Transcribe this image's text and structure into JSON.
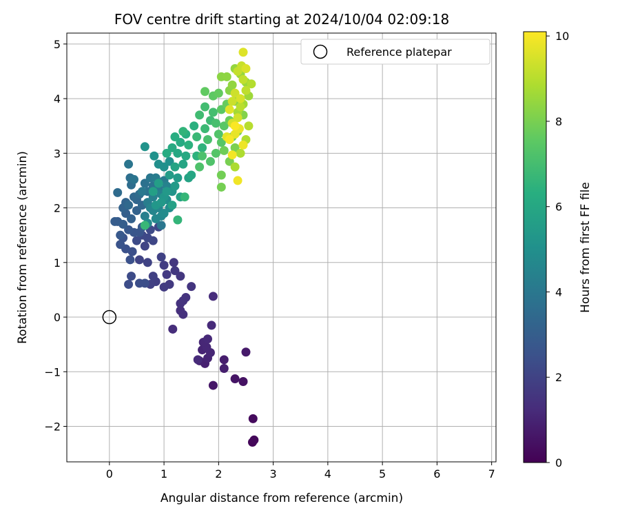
{
  "chart_data": {
    "type": "scatter",
    "title": "FOV centre drift starting at 2024/10/04 02:09:18",
    "xlabel": "Angular distance from reference (arcmin)",
    "ylabel": "Rotation from reference (arcmin)",
    "xlim": [
      -0.78,
      7.08
    ],
    "ylim": [
      -2.65,
      5.2
    ],
    "xticks": [
      0,
      1,
      2,
      3,
      4,
      5,
      6,
      7
    ],
    "yticks": [
      -2,
      -1,
      0,
      1,
      2,
      3,
      4,
      5
    ],
    "grid": true,
    "legend": {
      "placement": "top-right",
      "entries": [
        "Reference platepar"
      ]
    },
    "reference_point": {
      "x": 0,
      "y": 0,
      "label": "Reference platepar",
      "marker": "open-circle"
    },
    "colorbar": {
      "label": "Hours from first FF file",
      "range": [
        0,
        10.1
      ],
      "ticks": [
        0,
        2,
        4,
        6,
        8,
        10
      ],
      "colormap": "viridis"
    },
    "points": [
      [
        2.62,
        -2.29,
        0.15
      ],
      [
        2.65,
        -2.25,
        0.2
      ],
      [
        2.63,
        -1.86,
        0.3
      ],
      [
        2.45,
        -1.18,
        0.5
      ],
      [
        2.3,
        -1.13,
        0.55
      ],
      [
        1.9,
        -1.25,
        0.6
      ],
      [
        2.5,
        -0.64,
        0.7
      ],
      [
        2.1,
        -0.78,
        0.8
      ],
      [
        2.1,
        -0.94,
        0.85
      ],
      [
        1.75,
        -0.85,
        0.9
      ],
      [
        1.65,
        -0.8,
        0.95
      ],
      [
        1.7,
        -0.6,
        1.0
      ],
      [
        1.8,
        -0.75,
        1.0
      ],
      [
        1.85,
        -0.65,
        1.05
      ],
      [
        1.78,
        -0.55,
        1.1
      ],
      [
        1.72,
        -0.46,
        1.1
      ],
      [
        1.8,
        -0.4,
        1.15
      ],
      [
        1.87,
        -0.15,
        1.2
      ],
      [
        1.62,
        -0.78,
        1.2
      ],
      [
        1.9,
        0.38,
        1.25
      ],
      [
        1.16,
        -0.22,
        1.3
      ],
      [
        1.3,
        0.12,
        1.35
      ],
      [
        1.35,
        0.05,
        1.4
      ],
      [
        1.3,
        0.25,
        1.45
      ],
      [
        1.4,
        0.36,
        1.5
      ],
      [
        1.35,
        0.3,
        1.5
      ],
      [
        1.5,
        0.56,
        1.55
      ],
      [
        1.3,
        0.75,
        1.6
      ],
      [
        1.18,
        1.0,
        1.6
      ],
      [
        1.2,
        0.85,
        1.65
      ],
      [
        1.1,
        0.6,
        1.7
      ],
      [
        1.05,
        0.78,
        1.7
      ],
      [
        1.0,
        0.55,
        1.75
      ],
      [
        1.0,
        0.95,
        1.8
      ],
      [
        0.85,
        0.65,
        1.85
      ],
      [
        0.75,
        0.6,
        1.9
      ],
      [
        0.8,
        0.75,
        1.9
      ],
      [
        0.95,
        1.1,
        1.95
      ],
      [
        0.7,
        1.0,
        2.0
      ],
      [
        0.55,
        1.05,
        2.0
      ],
      [
        0.65,
        1.3,
        2.05
      ],
      [
        0.8,
        1.4,
        2.1
      ],
      [
        0.9,
        1.65,
        2.1
      ],
      [
        0.7,
        1.45,
        2.2
      ],
      [
        0.6,
        1.5,
        2.2
      ],
      [
        0.75,
        1.6,
        2.25
      ],
      [
        0.5,
        1.4,
        2.3
      ],
      [
        0.4,
        0.75,
        2.3
      ],
      [
        0.35,
        0.6,
        2.35
      ],
      [
        0.55,
        0.62,
        2.4
      ],
      [
        0.65,
        0.62,
        2.4
      ],
      [
        0.42,
        1.2,
        2.45
      ],
      [
        0.38,
        1.05,
        2.5
      ],
      [
        0.3,
        1.25,
        2.5
      ],
      [
        0.25,
        1.45,
        2.55
      ],
      [
        0.2,
        1.33,
        2.6
      ],
      [
        0.55,
        1.55,
        2.65
      ],
      [
        0.45,
        1.55,
        2.7
      ],
      [
        0.35,
        1.6,
        2.75
      ],
      [
        0.2,
        1.5,
        2.8
      ],
      [
        0.6,
        1.65,
        2.85
      ],
      [
        0.15,
        1.75,
        2.9
      ],
      [
        0.1,
        1.75,
        2.95
      ],
      [
        0.25,
        1.7,
        3.0
      ],
      [
        0.3,
        1.9,
        3.05
      ],
      [
        0.4,
        1.8,
        3.1
      ],
      [
        0.5,
        1.95,
        3.15
      ],
      [
        0.25,
        2.0,
        3.2
      ],
      [
        0.3,
        2.1,
        3.25
      ],
      [
        0.5,
        2.15,
        3.3
      ],
      [
        0.6,
        2.05,
        3.35
      ],
      [
        0.45,
        2.2,
        3.4
      ],
      [
        0.35,
        2.05,
        3.45
      ],
      [
        0.15,
        2.28,
        3.5
      ],
      [
        0.55,
        2.25,
        3.55
      ],
      [
        0.4,
        2.42,
        3.6
      ],
      [
        0.38,
        2.55,
        3.65
      ],
      [
        0.7,
        2.3,
        3.7
      ],
      [
        0.65,
        2.45,
        3.75
      ],
      [
        0.8,
        2.4,
        3.8
      ],
      [
        0.45,
        2.52,
        3.85
      ],
      [
        0.35,
        2.8,
        3.9
      ],
      [
        0.95,
        1.68,
        3.95
      ],
      [
        0.75,
        2.55,
        4.0
      ],
      [
        0.6,
        2.3,
        4.05
      ],
      [
        0.9,
        2.35,
        4.1
      ],
      [
        1.0,
        2.5,
        4.15
      ],
      [
        0.85,
        2.55,
        4.2
      ],
      [
        0.7,
        2.1,
        4.25
      ],
      [
        0.65,
        1.85,
        4.3
      ],
      [
        0.8,
        2.2,
        4.35
      ],
      [
        0.95,
        2.25,
        4.4
      ],
      [
        1.05,
        2.4,
        4.45
      ],
      [
        0.75,
        2.0,
        4.5
      ],
      [
        0.8,
        1.95,
        4.55
      ],
      [
        0.9,
        2.0,
        4.6
      ],
      [
        0.95,
        1.85,
        4.65
      ],
      [
        0.85,
        1.8,
        4.7
      ],
      [
        0.7,
        1.72,
        4.75
      ],
      [
        1.0,
        1.9,
        4.8
      ],
      [
        1.1,
        2.0,
        4.85
      ],
      [
        1.05,
        2.15,
        4.9
      ],
      [
        0.9,
        2.8,
        4.95
      ],
      [
        1.0,
        2.75,
        5.0
      ],
      [
        1.1,
        2.85,
        5.05
      ],
      [
        0.82,
        2.95,
        5.1
      ],
      [
        0.65,
        3.12,
        5.15
      ],
      [
        1.15,
        2.3,
        5.2
      ],
      [
        1.0,
        2.2,
        5.25
      ],
      [
        0.85,
        2.05,
        5.3
      ],
      [
        0.95,
        2.1,
        5.35
      ],
      [
        1.05,
        2.3,
        5.4
      ],
      [
        1.2,
        2.4,
        5.45
      ],
      [
        1.25,
        2.55,
        5.5
      ],
      [
        1.1,
        2.6,
        5.55
      ],
      [
        0.9,
        2.45,
        5.6
      ],
      [
        0.8,
        2.3,
        5.65
      ],
      [
        1.15,
        2.05,
        5.7
      ],
      [
        1.3,
        2.2,
        5.75
      ],
      [
        1.45,
        2.55,
        5.8
      ],
      [
        1.2,
        2.75,
        5.85
      ],
      [
        1.35,
        2.8,
        5.9
      ],
      [
        1.5,
        2.6,
        5.95
      ],
      [
        1.25,
        3.0,
        6.0
      ],
      [
        1.4,
        2.95,
        6.05
      ],
      [
        1.15,
        3.1,
        6.1
      ],
      [
        1.3,
        3.2,
        6.15
      ],
      [
        1.05,
        3.0,
        6.2
      ],
      [
        1.2,
        3.3,
        6.25
      ],
      [
        1.4,
        3.35,
        6.3
      ],
      [
        1.55,
        3.5,
        6.35
      ],
      [
        1.45,
        3.15,
        6.4
      ],
      [
        1.6,
        2.95,
        6.45
      ],
      [
        1.7,
        3.1,
        6.5
      ],
      [
        1.35,
        3.4,
        6.55
      ],
      [
        1.25,
        1.78,
        6.6
      ],
      [
        1.38,
        2.2,
        6.65
      ],
      [
        0.65,
        1.68,
        6.7
      ],
      [
        1.6,
        3.3,
        6.75
      ],
      [
        1.75,
        3.45,
        6.8
      ],
      [
        1.85,
        3.6,
        6.85
      ],
      [
        1.65,
        3.7,
        6.9
      ],
      [
        1.75,
        3.85,
        6.95
      ],
      [
        1.9,
        3.75,
        7.0
      ],
      [
        1.95,
        3.55,
        7.05
      ],
      [
        1.8,
        3.25,
        7.1
      ],
      [
        1.7,
        2.95,
        7.15
      ],
      [
        1.65,
        2.75,
        7.2
      ],
      [
        1.85,
        2.85,
        7.25
      ],
      [
        2.0,
        3.35,
        7.3
      ],
      [
        1.95,
        3.0,
        7.35
      ],
      [
        2.05,
        3.2,
        7.4
      ],
      [
        2.1,
        3.5,
        7.45
      ],
      [
        2.05,
        3.8,
        7.5
      ],
      [
        1.9,
        4.05,
        7.55
      ],
      [
        1.75,
        4.13,
        7.6
      ],
      [
        2.0,
        4.1,
        7.65
      ],
      [
        2.15,
        3.9,
        7.7
      ],
      [
        2.2,
        3.6,
        7.75
      ],
      [
        2.25,
        3.3,
        7.8
      ],
      [
        2.1,
        3.05,
        7.85
      ],
      [
        2.05,
        2.6,
        7.9
      ],
      [
        2.05,
        2.38,
        7.95
      ],
      [
        2.2,
        2.85,
        8.0
      ],
      [
        2.3,
        3.1,
        8.05
      ],
      [
        2.35,
        3.4,
        8.1
      ],
      [
        2.45,
        3.7,
        8.15
      ],
      [
        2.3,
        3.95,
        8.2
      ],
      [
        2.2,
        4.15,
        8.25
      ],
      [
        2.05,
        4.4,
        8.3
      ],
      [
        2.15,
        4.4,
        8.35
      ],
      [
        2.25,
        4.25,
        8.4
      ],
      [
        2.3,
        4.55,
        8.45
      ],
      [
        2.4,
        4.45,
        8.5
      ],
      [
        2.5,
        4.3,
        8.55
      ],
      [
        2.55,
        4.05,
        8.6
      ],
      [
        2.45,
        3.9,
        8.65
      ],
      [
        2.35,
        3.75,
        8.7
      ],
      [
        2.25,
        3.55,
        8.75
      ],
      [
        2.3,
        2.75,
        8.8
      ],
      [
        2.4,
        3.0,
        8.85
      ],
      [
        2.5,
        3.25,
        8.9
      ],
      [
        2.6,
        4.27,
        8.95
      ],
      [
        2.55,
        3.5,
        9.0
      ],
      [
        2.4,
        3.85,
        9.05
      ],
      [
        2.5,
        4.15,
        9.1
      ],
      [
        2.45,
        4.35,
        9.15
      ],
      [
        2.35,
        4.5,
        9.2
      ],
      [
        2.42,
        4.6,
        9.25
      ],
      [
        2.25,
        3.95,
        9.3
      ],
      [
        2.3,
        4.1,
        9.35
      ],
      [
        2.35,
        3.65,
        9.4
      ],
      [
        2.25,
        3.55,
        9.45
      ],
      [
        2.4,
        4.0,
        9.5
      ],
      [
        2.5,
        4.55,
        9.55
      ],
      [
        2.45,
        4.85,
        9.6
      ],
      [
        2.2,
        3.8,
        9.65
      ],
      [
        2.15,
        3.3,
        9.7
      ],
      [
        2.3,
        3.35,
        9.75
      ],
      [
        2.38,
        3.45,
        9.8
      ],
      [
        2.45,
        3.15,
        9.85
      ],
      [
        2.35,
        2.5,
        9.9
      ],
      [
        2.25,
        2.97,
        9.95
      ],
      [
        2.2,
        3.25,
        10.0
      ],
      [
        2.3,
        3.5,
        10.05
      ]
    ]
  }
}
